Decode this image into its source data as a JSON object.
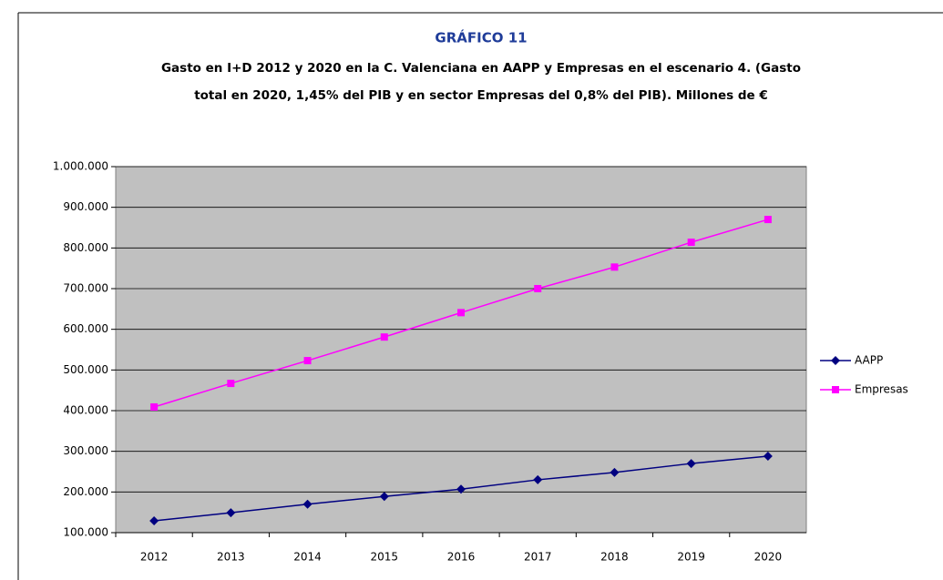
{
  "chart_data": {
    "type": "line",
    "title": "GRÁFICO 11",
    "subtitle": [
      "Gasto en I+D 2012 y 2020 en la C. Valenciana en AAPP y Empresas en el escenario 4. (Gasto",
      "total en 2020, 1,45% del PIB y en sector Empresas del 0,8% del PIB). Millones de €"
    ],
    "categories": [
      "2012",
      "2013",
      "2014",
      "2015",
      "2016",
      "2017",
      "2018",
      "2019",
      "2020"
    ],
    "series": [
      {
        "name": "AAPP",
        "color": "#000080",
        "marker": "diamond",
        "values": [
          129000,
          149000,
          170000,
          189000,
          207000,
          230000,
          248000,
          270000,
          288000
        ]
      },
      {
        "name": "Empresas",
        "color": "#ff00ff",
        "marker": "square",
        "values": [
          409000,
          467000,
          523000,
          581000,
          641000,
          700000,
          753000,
          814000,
          870000
        ]
      }
    ],
    "ylim": [
      100000,
      1000000
    ],
    "yticks": [
      {
        "value": 100000,
        "label": "100.000"
      },
      {
        "value": 200000,
        "label": "200.000"
      },
      {
        "value": 300000,
        "label": "300.000"
      },
      {
        "value": 400000,
        "label": "400.000"
      },
      {
        "value": 500000,
        "label": "500.000"
      },
      {
        "value": 600000,
        "label": "600.000"
      },
      {
        "value": 700000,
        "label": "700.000"
      },
      {
        "value": 800000,
        "label": "800.000"
      },
      {
        "value": 900000,
        "label": "900.000"
      },
      {
        "value": 1000000,
        "label": "1.000.000"
      }
    ],
    "grid": true,
    "legend": "right",
    "plot_background": "#c0c0c0"
  }
}
